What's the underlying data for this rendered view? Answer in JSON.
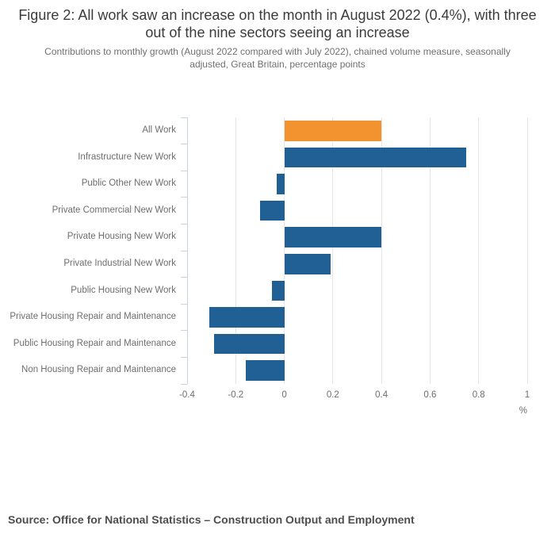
{
  "header": {
    "title": "Figure 2: All work saw an increase on the month in August 2022 (0.4%), with three out of the nine sectors seeing an increase",
    "subtitle": "Contributions to monthly growth (August 2022 compared with July 2022), chained volume measure, seasonally adjusted, Great Britain, percentage points"
  },
  "chart_data": {
    "type": "bar",
    "orientation": "horizontal",
    "title": "Figure 2: All work saw an increase on the month in August 2022 (0.4%), with three out of the nine sectors seeing an increase",
    "subtitle": "Contributions to monthly growth (August 2022 compared with July 2022), chained volume measure, seasonally adjusted, Great Britain, percentage points",
    "categories": [
      "All Work",
      "Infrastructure New Work",
      "Public Other New Work",
      "Private Commercial New Work",
      "Private Housing New Work",
      "Private Industrial New Work",
      "Public Housing New Work",
      "Private Housing Repair and Maintenance",
      "Public Housing Repair and Maintenance",
      "Non Housing Repair and Maintenance"
    ],
    "values": [
      0.4,
      0.75,
      -0.03,
      -0.1,
      0.4,
      0.19,
      -0.05,
      -0.31,
      -0.29,
      -0.16
    ],
    "bar_colors": [
      "#f3932f",
      "#206095",
      "#206095",
      "#206095",
      "#206095",
      "#206095",
      "#206095",
      "#206095",
      "#206095",
      "#206095"
    ],
    "xlabel": "%",
    "ylabel": "",
    "xlim": [
      -0.4,
      1
    ],
    "x_ticks": [
      -0.4,
      -0.2,
      0,
      0.2,
      0.4,
      0.6,
      0.8,
      1
    ],
    "x_tick_labels": [
      "-0.4",
      "-0.2",
      "0",
      "0.2",
      "0.4",
      "0.6",
      "0.8",
      "1"
    ],
    "grid": true,
    "legend_position": "none"
  },
  "footer": {
    "source": "Source: Office for National Statistics – Construction Output and Employment"
  },
  "colors": {
    "bar_default": "#206095",
    "bar_highlight": "#f3932f",
    "gridline": "#e7e7e7",
    "axis_line": "#c9d2e2",
    "title_text": "#3b3b3b",
    "muted_text": "#6e6e6e",
    "source_text": "#4d4d4d"
  }
}
